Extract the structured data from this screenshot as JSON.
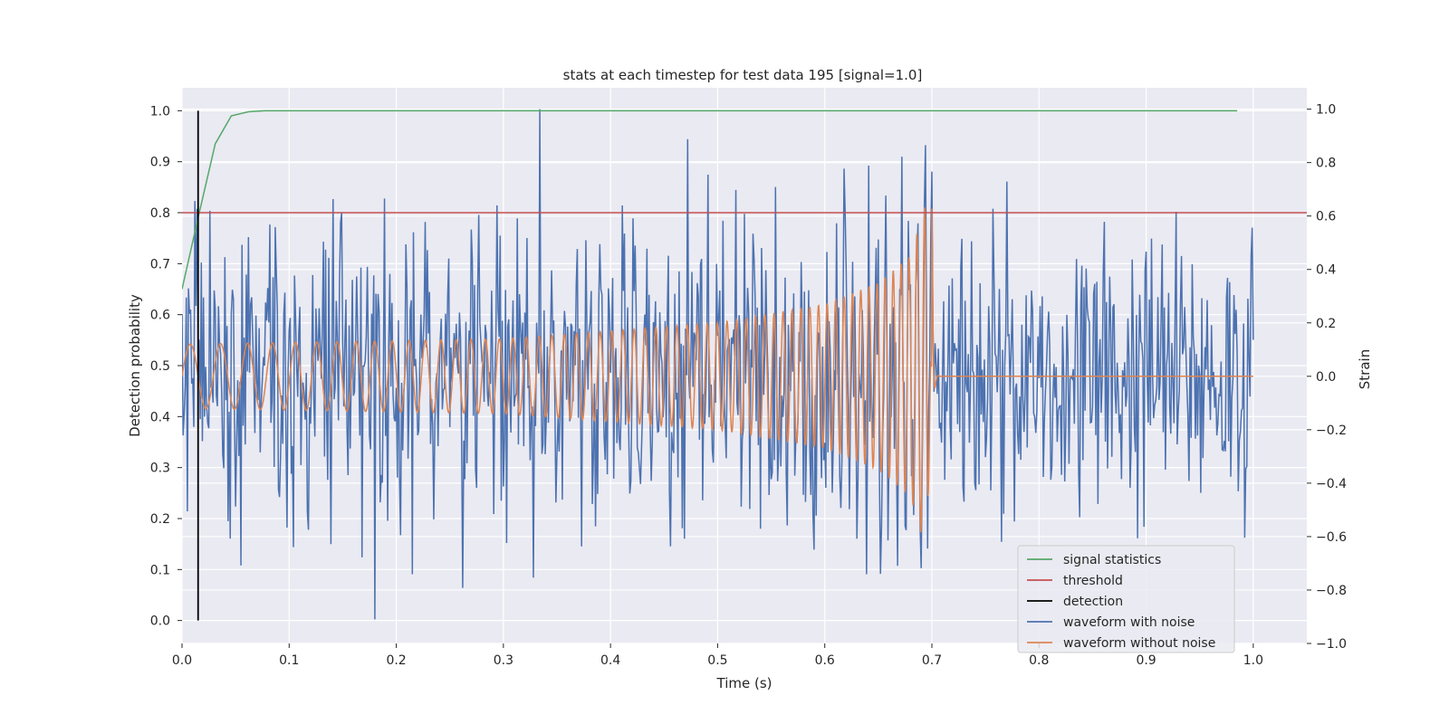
{
  "chart_data": {
    "type": "line",
    "title": "stats at each timestep for test data 195 [signal=1.0]",
    "xlabel": "Time (s)",
    "ylabel_left": "Detection probability",
    "ylabel_right": "Strain",
    "xlim": [
      0.0,
      1.05
    ],
    "ylim_left": [
      -0.045,
      1.045
    ],
    "ylim_right": [
      -1.0,
      1.08
    ],
    "x_ticks": [
      0.0,
      0.1,
      0.2,
      0.3,
      0.4,
      0.5,
      0.6,
      0.7,
      0.8,
      0.9,
      1.0
    ],
    "x_tick_labels": [
      "0.0",
      "0.1",
      "0.2",
      "0.3",
      "0.4",
      "0.5",
      "0.6",
      "0.7",
      "0.8",
      "0.9",
      "1.0"
    ],
    "y_left_ticks": [
      0.0,
      0.1,
      0.2,
      0.3,
      0.4,
      0.5,
      0.6,
      0.7,
      0.8,
      0.9,
      1.0
    ],
    "y_left_tick_labels": [
      "0.0",
      "0.1",
      "0.2",
      "0.3",
      "0.4",
      "0.5",
      "0.6",
      "0.7",
      "0.8",
      "0.9",
      "1.0"
    ],
    "y_right_ticks": [
      -1.0,
      -0.8,
      -0.6,
      -0.4,
      -0.2,
      0.0,
      0.2,
      0.4,
      0.6,
      0.8,
      1.0
    ],
    "y_right_tick_labels": [
      "−1.0",
      "−0.8",
      "−0.6",
      "−0.4",
      "−0.2",
      "0.0",
      "0.2",
      "0.4",
      "0.6",
      "0.8",
      "1.0"
    ],
    "grid": true,
    "legend_position": "lower-right",
    "colors": {
      "signal": "#55a868",
      "threshold": "#c44e52",
      "detection": "#000000",
      "noisy": "#4c72b0",
      "clean": "#dd8452",
      "axes_bg": "#eaeaf2",
      "grid": "#ffffff"
    },
    "series": [
      {
        "name": "signal statistics",
        "axis": "left",
        "x": [
          0.0,
          0.015,
          0.031,
          0.046,
          0.062,
          0.077,
          0.2,
          0.4,
          0.6,
          0.8,
          0.985
        ],
        "y": [
          0.65,
          0.79,
          0.935,
          0.99,
          0.998,
          1.0,
          1.0,
          1.0,
          1.0,
          1.0,
          1.0
        ]
      },
      {
        "name": "threshold",
        "axis": "left",
        "x": [
          0.0,
          1.05
        ],
        "y": [
          0.8,
          0.8
        ]
      },
      {
        "name": "detection",
        "axis": "left",
        "x": [
          0.015,
          0.015
        ],
        "y": [
          0.0,
          1.0
        ]
      },
      {
        "name": "waveform with noise",
        "axis": "right",
        "x": [
          0.0,
          1.0
        ],
        "y_min": -0.91,
        "y_max": 1.0,
        "note_values": "dense noisy series sampled at ~1000 points; extreme values: 1.0 at x≈0.334, −0.91 at x≈0.18"
      },
      {
        "name": "waveform without noise",
        "axis": "right",
        "x": [
          0.0,
          1.0
        ],
        "envelope": [
          {
            "x": 0.0,
            "amp": 0.12
          },
          {
            "x": 0.3,
            "amp": 0.14
          },
          {
            "x": 0.5,
            "amp": 0.2
          },
          {
            "x": 0.6,
            "amp": 0.27
          },
          {
            "x": 0.65,
            "amp": 0.35
          },
          {
            "x": 0.68,
            "amp": 0.45
          },
          {
            "x": 0.695,
            "amp": 0.66
          },
          {
            "x": 0.7,
            "amp": 0.0
          },
          {
            "x": 1.0,
            "amp": 0.0
          }
        ],
        "cycles": 58
      }
    ]
  }
}
